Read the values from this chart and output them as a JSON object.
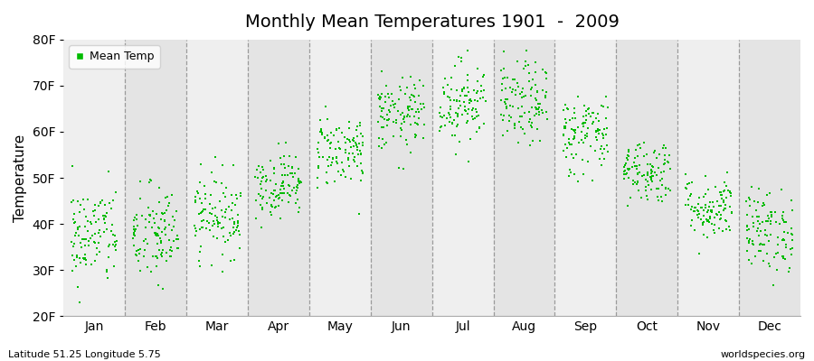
{
  "title": "Monthly Mean Temperatures 1901  -  2009",
  "ylabel": "Temperature",
  "xlabel_months": [
    "Jan",
    "Feb",
    "Mar",
    "Apr",
    "May",
    "Jun",
    "Jul",
    "Aug",
    "Sep",
    "Oct",
    "Nov",
    "Dec"
  ],
  "yticks": [
    20,
    30,
    40,
    50,
    60,
    70,
    80
  ],
  "ytick_labels": [
    "20F",
    "30F",
    "40F",
    "50F",
    "60F",
    "70F",
    "80F"
  ],
  "ylim": [
    20,
    80
  ],
  "dot_color": "#00bb00",
  "band_colors": [
    "#efefef",
    "#e4e4e4"
  ],
  "footer_left": "Latitude 51.25 Longitude 5.75",
  "footer_right": "worldspecies.org",
  "legend_label": "Mean Temp",
  "n_years": 109,
  "monthly_means_F": [
    37.5,
    37.5,
    42.0,
    48.5,
    56.0,
    63.5,
    66.5,
    66.0,
    59.5,
    51.5,
    43.5,
    38.5
  ],
  "monthly_stds_F": [
    5.5,
    5.5,
    4.5,
    3.5,
    4.0,
    4.0,
    4.5,
    4.5,
    4.5,
    3.5,
    3.5,
    4.5
  ],
  "seed": 42
}
